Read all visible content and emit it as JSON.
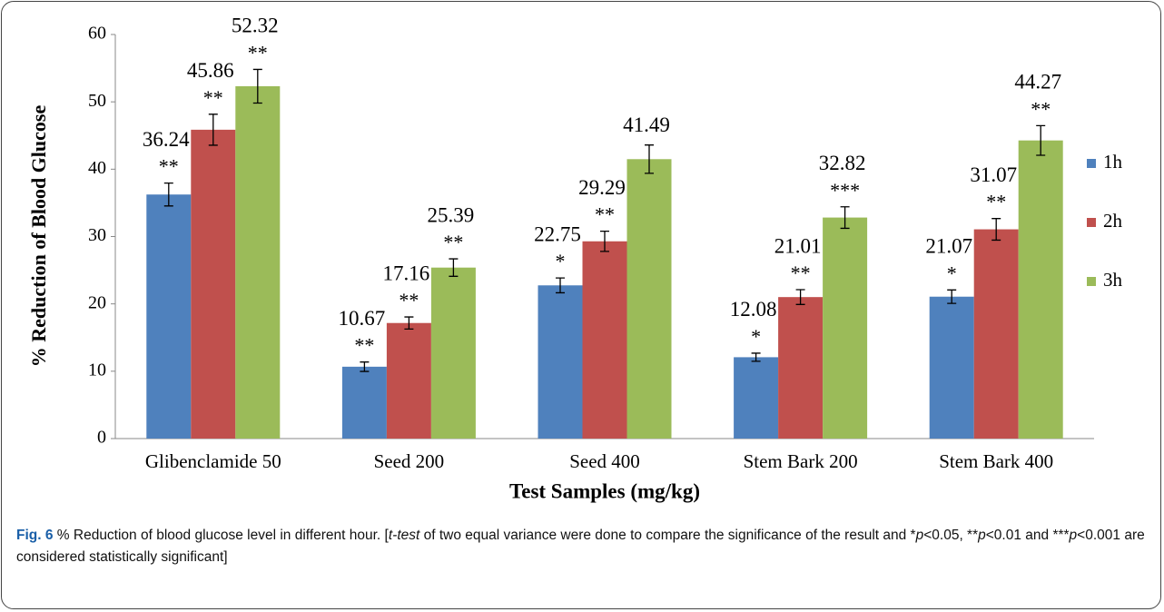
{
  "chart_data": {
    "type": "bar",
    "y_label": "% Reduction of Blood Glucose",
    "x_label": "Test Samples (mg/kg)",
    "categories": [
      "Glibenclamide 50",
      "Seed 200",
      "Seed 400",
      "Stem Bark 200",
      "Stem Bark 400"
    ],
    "series": [
      {
        "name": "1h",
        "color": "#4f81bd",
        "values": [
          36.24,
          10.67,
          22.75,
          12.08,
          21.07
        ],
        "errors": [
          1.7,
          0.7,
          1.1,
          0.6,
          1.0
        ],
        "significance": [
          "**",
          "**",
          "*",
          "*",
          "*"
        ]
      },
      {
        "name": "2h",
        "color": "#c0504d",
        "values": [
          45.86,
          17.16,
          29.29,
          21.01,
          31.07
        ],
        "errors": [
          2.3,
          0.9,
          1.5,
          1.1,
          1.6
        ],
        "significance": [
          "**",
          "**",
          "**",
          "**",
          "**"
        ]
      },
      {
        "name": "3h",
        "color": "#9bbb59",
        "values": [
          52.32,
          25.39,
          41.49,
          32.82,
          44.27
        ],
        "errors": [
          2.5,
          1.3,
          2.1,
          1.6,
          2.2
        ],
        "significance": [
          "**",
          "**",
          null,
          "***",
          "**"
        ]
      }
    ],
    "ylim": [
      0,
      60
    ],
    "yticks": [
      0,
      10,
      20,
      30,
      40,
      50,
      60
    ],
    "legend": "right"
  },
  "caption": {
    "label": "Fig. 6",
    "parts": [
      " % Reduction of blood glucose level in different hour. [",
      "t-test",
      " of two equal variance were done to compare the significance of the result and *",
      "p",
      "<0.05, **",
      "p",
      "<0.01 and ***",
      "p",
      "<0.001 are considered statistically significant]"
    ]
  }
}
